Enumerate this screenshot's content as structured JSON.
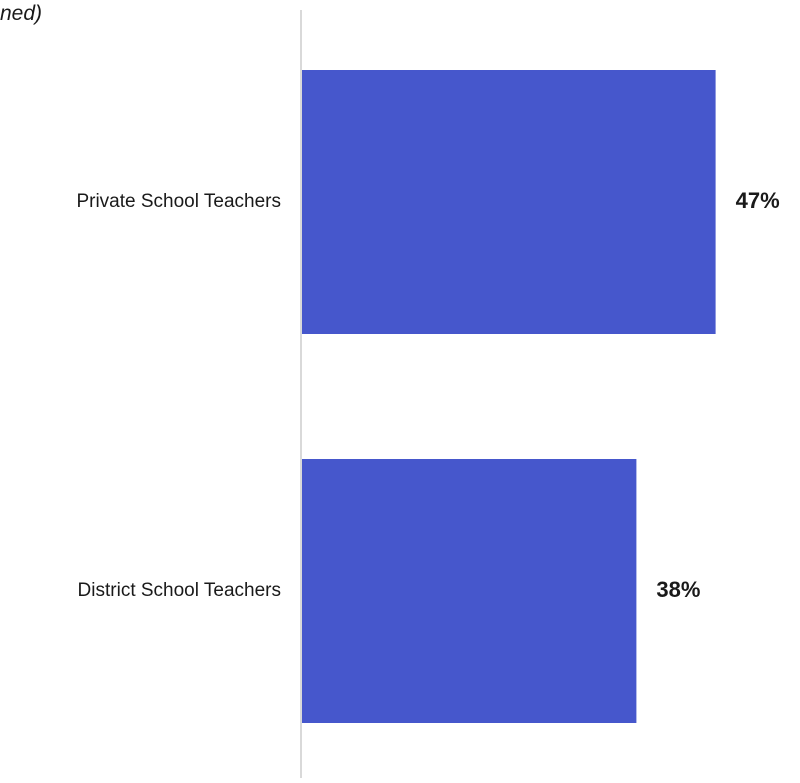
{
  "chart_data": {
    "type": "bar",
    "orientation": "horizontal",
    "subtitle_fragment": "ned)",
    "categories": [
      "Private School Teachers",
      "District School Teachers"
    ],
    "values": [
      47,
      38
    ],
    "value_labels": [
      "47%",
      "38%"
    ],
    "xlim": [
      0,
      100
    ],
    "grid": false,
    "bar_color": "#4657cc",
    "axis_color": "#d9d9d9"
  }
}
